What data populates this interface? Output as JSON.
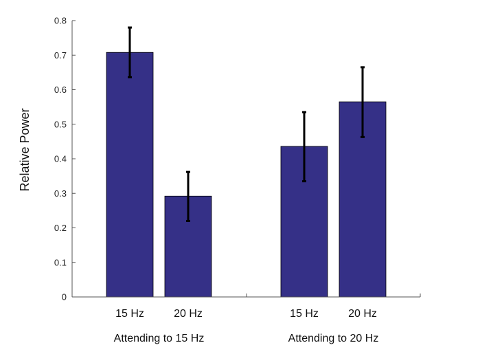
{
  "chart_data": {
    "type": "bar",
    "ylabel": "Relative Power",
    "xlabel": "",
    "ylim": [
      0,
      0.8
    ],
    "yticks": [
      "0",
      "0.1",
      "0.2",
      "0.3",
      "0.4",
      "0.5",
      "0.6",
      "0.7",
      "0.8"
    ],
    "groups": [
      {
        "label": "Attending to 15 Hz",
        "bars": [
          {
            "label": "15 Hz",
            "value": 0.708,
            "err_low": 0.636,
            "err_high": 0.78
          },
          {
            "label": "20 Hz",
            "value": 0.292,
            "err_low": 0.22,
            "err_high": 0.362
          }
        ]
      },
      {
        "label": "Attending to 20 Hz",
        "bars": [
          {
            "label": "15 Hz",
            "value": 0.436,
            "err_low": 0.335,
            "err_high": 0.535
          },
          {
            "label": "20 Hz",
            "value": 0.565,
            "err_low": 0.463,
            "err_high": 0.665
          }
        ]
      }
    ],
    "bar_color": "#353087",
    "errorbar_color": "#000000",
    "grid": false,
    "legend": "none"
  }
}
